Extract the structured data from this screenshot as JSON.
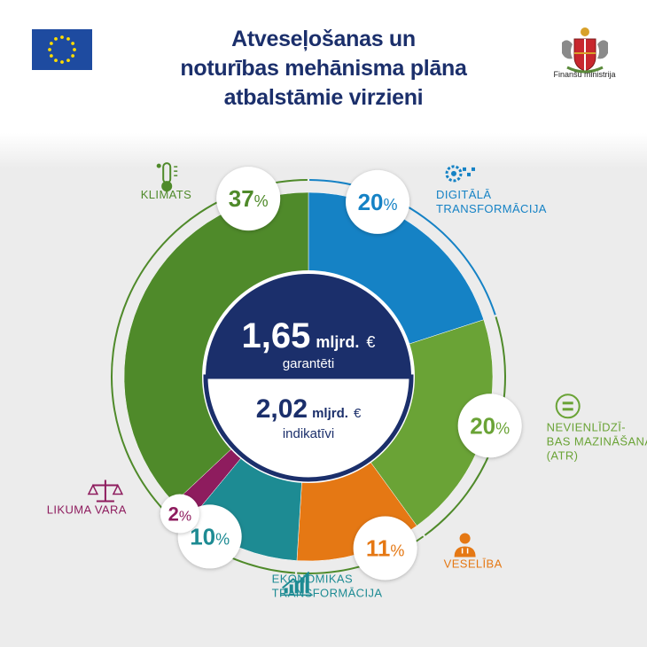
{
  "header": {
    "title_lines": [
      "Atveseļošanas un",
      "noturības mehānisma plāna",
      "atbalstāmie virzieni"
    ],
    "ministry": "Finanšu ministrija"
  },
  "colors": {
    "title": "#1b2f6b",
    "eu_blue": "#1e4ba0",
    "eu_star": "#ffdd00",
    "center_dark": "#1b2f6b"
  },
  "center": {
    "value1": "1,65",
    "unit1": "mljrd.",
    "currency1": "€",
    "caption1": "garantēti",
    "value2": "2,02",
    "unit2": "mljrd.",
    "currency2": "€",
    "caption2": "indikatīvi"
  },
  "chart_data": {
    "type": "pie",
    "title": "Atveseļošanas un noturības mehānisma plāna atbalstāmie virzieni",
    "unit": "%",
    "slices": [
      {
        "label": "DIGITĀLĀ TRANSFORMĀCIJA",
        "label_lines": [
          "DIGITĀLĀ",
          "TRANSFORMĀCIJA"
        ],
        "value": 20,
        "color": "#1582c5",
        "icon": "digital-gear-icon"
      },
      {
        "label": "NEVIENLĪDZĪBAS MAZINĀŠANA (ATR)",
        "label_lines": [
          "NEVIENLĪDZĪ-",
          "BAS MAZINĀŠANA",
          "(ATR)"
        ],
        "value": 20,
        "color": "#6aa336",
        "icon": "equality-icon"
      },
      {
        "label": "VESELĪBA",
        "label_lines": [
          "VESELĪBA"
        ],
        "value": 11,
        "color": "#e57814",
        "icon": "doctor-icon"
      },
      {
        "label": "EKONOMIKAS TRANSFORMĀCIJA",
        "label_lines": [
          "EKONOMIKAS",
          "TRANSFORMĀCIJA"
        ],
        "value": 10,
        "color": "#1d8b93",
        "icon": "growth-chart-icon"
      },
      {
        "label": "LIKUMA VARA",
        "label_lines": [
          "LIKUMA VARA"
        ],
        "value": 2,
        "color": "#8e1c5e",
        "icon": "scales-icon"
      },
      {
        "label": "KLIMATS",
        "label_lines": [
          "KLIMATS"
        ],
        "value": 37,
        "color": "#4f8a2a",
        "icon": "thermometer-icon"
      }
    ]
  }
}
